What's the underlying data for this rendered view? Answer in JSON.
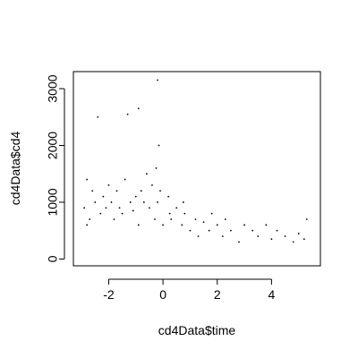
{
  "chart_data": {
    "type": "scatter",
    "title": "",
    "xlabel": "cd4Data$time",
    "ylabel": "cd4Data$cd4",
    "xlim": [
      -3.3,
      5.8
    ],
    "ylim": [
      -120,
      3300
    ],
    "x_ticks": [
      -2,
      0,
      2,
      4
    ],
    "y_ticks": [
      0,
      1000,
      2000,
      3000
    ],
    "x_tick_labels": [
      "-2",
      "0",
      "2",
      "4"
    ],
    "y_tick_labels": [
      "0",
      "1000",
      "2000",
      "3000"
    ],
    "grid": false,
    "legend": "none",
    "point_color": "#000000",
    "series": [
      {
        "x": [
          -2.9,
          -2.8,
          -2.7,
          -2.6,
          -2.5,
          -2.3,
          -2.2,
          -2.1,
          -2.0,
          -1.9,
          -1.8,
          -1.7,
          -1.6,
          -1.5,
          -1.4,
          -1.2,
          -1.1,
          -1.0,
          -0.9,
          -0.8,
          -0.7,
          -0.6,
          -0.5,
          -0.4,
          -0.3,
          -0.25,
          -0.2,
          -0.15,
          -0.1,
          0.0,
          0.2,
          0.25,
          0.3,
          0.5,
          0.7,
          0.75,
          0.8,
          1.0,
          1.2,
          1.3,
          1.5,
          1.7,
          1.8,
          2.0,
          2.2,
          2.3,
          2.5,
          2.8,
          3.0,
          3.3,
          3.5,
          3.8,
          4.0,
          4.2,
          4.5,
          4.8,
          5.0,
          5.2,
          5.3,
          -2.4,
          -1.3,
          -0.9,
          -0.2,
          -2.8
        ],
        "y": [
          900,
          1400,
          700,
          1200,
          1000,
          800,
          1100,
          900,
          1300,
          1000,
          700,
          1200,
          900,
          800,
          1400,
          1000,
          850,
          1100,
          600,
          1200,
          1000,
          1500,
          900,
          1300,
          700,
          1600,
          1000,
          2000,
          1200,
          600,
          1100,
          800,
          700,
          900,
          600,
          1000,
          800,
          500,
          700,
          400,
          650,
          500,
          800,
          600,
          400,
          700,
          500,
          300,
          600,
          500,
          400,
          600,
          350,
          500,
          400,
          300,
          450,
          350,
          700,
          2500,
          2550,
          2650,
          3150,
          600
        ]
      }
    ]
  }
}
